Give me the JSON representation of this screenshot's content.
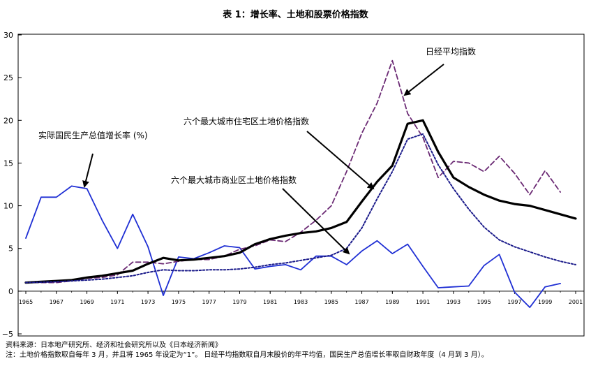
{
  "chart_data": {
    "type": "line",
    "title": "表 1：增长率、土地和股票价格指数",
    "xlabel": "",
    "ylabel": "",
    "xlim": [
      1965,
      2001
    ],
    "ylim": [
      -5,
      30
    ],
    "x_ticks": [
      "1965",
      "1967",
      "1969",
      "1971",
      "1973",
      "1975",
      "1977",
      "1979",
      "1981",
      "1983",
      "1985",
      "1987",
      "1989",
      "1991",
      "1993",
      "1995",
      "1997",
      "1999",
      "2001"
    ],
    "y_ticks": [
      "30",
      "25",
      "20",
      "15",
      "10",
      "5",
      "0",
      "−5"
    ],
    "grid": false,
    "series": [
      {
        "name": "实际国民生产总值增长率 (%)",
        "color": "#1f2fd4",
        "style": "solid",
        "x": [
          1965,
          1966,
          1967,
          1968,
          1969,
          1970,
          1971,
          1972,
          1973,
          1974,
          1975,
          1976,
          1977,
          1978,
          1979,
          1980,
          1981,
          1982,
          1983,
          1984,
          1985,
          1986,
          1987,
          1988,
          1989,
          1990,
          1991,
          1992,
          1993,
          1994,
          1995,
          1996,
          1997,
          1998,
          1999,
          2000
        ],
        "y": [
          6.2,
          11.0,
          11.0,
          12.3,
          12.0,
          8.3,
          5.0,
          9.0,
          5.2,
          -0.5,
          4.0,
          3.8,
          4.5,
          5.3,
          5.1,
          2.6,
          2.9,
          3.1,
          2.5,
          4.1,
          4.1,
          3.1,
          4.7,
          5.9,
          4.4,
          5.5,
          2.9,
          0.4,
          0.5,
          0.6,
          3.0,
          4.3,
          -0.1,
          -1.9,
          0.5,
          0.9
        ]
      },
      {
        "name": "日经平均指数",
        "color": "#6b2a74",
        "style": "dashed",
        "x": [
          1965,
          1966,
          1967,
          1968,
          1969,
          1970,
          1971,
          1972,
          1973,
          1974,
          1975,
          1976,
          1977,
          1978,
          1979,
          1980,
          1981,
          1982,
          1983,
          1984,
          1985,
          1986,
          1987,
          1988,
          1989,
          1990,
          1991,
          1992,
          1993,
          1994,
          1995,
          1996,
          1997,
          1998,
          1999,
          2000
        ],
        "y": [
          1.0,
          1.0,
          1.0,
          1.2,
          1.5,
          1.6,
          1.9,
          3.4,
          3.4,
          3.2,
          3.5,
          3.7,
          3.7,
          4.1,
          4.9,
          5.3,
          6.0,
          5.8,
          6.9,
          8.3,
          10.0,
          14.0,
          18.5,
          22.0,
          27.0,
          20.8,
          18.0,
          13.3,
          15.2,
          15.0,
          14.0,
          15.8,
          13.8,
          11.3,
          14.1,
          11.6
        ]
      },
      {
        "name": "六个最大城市住宅区土地价格指数",
        "color": "#000000",
        "style": "solid-thick",
        "x": [
          1965,
          1966,
          1967,
          1968,
          1969,
          1970,
          1971,
          1972,
          1973,
          1974,
          1975,
          1976,
          1977,
          1978,
          1979,
          1980,
          1981,
          1982,
          1983,
          1984,
          1985,
          1986,
          1987,
          1988,
          1989,
          1990,
          1991,
          1992,
          1993,
          1994,
          1995,
          1996,
          1997,
          1998,
          1999,
          2000,
          2001
        ],
        "y": [
          1.0,
          1.1,
          1.2,
          1.3,
          1.6,
          1.8,
          2.1,
          2.4,
          3.2,
          3.9,
          3.6,
          3.7,
          3.9,
          4.1,
          4.5,
          5.5,
          6.1,
          6.5,
          6.8,
          7.0,
          7.4,
          8.1,
          10.5,
          12.8,
          14.7,
          19.6,
          20.0,
          16.3,
          13.3,
          12.2,
          11.3,
          10.6,
          10.2,
          10.0,
          9.5,
          9.0,
          8.5
        ]
      },
      {
        "name": "六个最大城市商业区土地价格指数",
        "color": "#1a1a8a",
        "style": "dotted",
        "x": [
          1965,
          1966,
          1967,
          1968,
          1969,
          1970,
          1971,
          1972,
          1973,
          1974,
          1975,
          1976,
          1977,
          1978,
          1979,
          1980,
          1981,
          1982,
          1983,
          1984,
          1985,
          1986,
          1987,
          1988,
          1989,
          1990,
          1991,
          1992,
          1993,
          1994,
          1995,
          1996,
          1997,
          1998,
          1999,
          2000,
          2001
        ],
        "y": [
          1.0,
          1.05,
          1.1,
          1.2,
          1.3,
          1.4,
          1.6,
          1.8,
          2.2,
          2.5,
          2.4,
          2.4,
          2.5,
          2.5,
          2.6,
          2.8,
          3.1,
          3.3,
          3.6,
          3.9,
          4.2,
          5.0,
          7.4,
          10.8,
          14.0,
          17.8,
          18.4,
          14.8,
          12.0,
          9.6,
          7.5,
          6.0,
          5.2,
          4.6,
          4.0,
          3.5,
          3.1
        ]
      }
    ],
    "annotations": [
      "实际国民生产总值增长率 (%)",
      "日经平均指数",
      "六个最大城市住宅区土地价格指数",
      "六个最大城市商业区土地价格指数"
    ]
  },
  "footnotes": {
    "source": "资料来源：日本地产研究所、经济和社会研究所以及《日本经济新闻》",
    "method": "注：土地价格指数取自每年 3 月，并且将 1965 年设定为“1”。 日经平均指数取自月末股价的年平均值，国民生产总值增长率取自财政年度（4 月到 3 月）。"
  }
}
